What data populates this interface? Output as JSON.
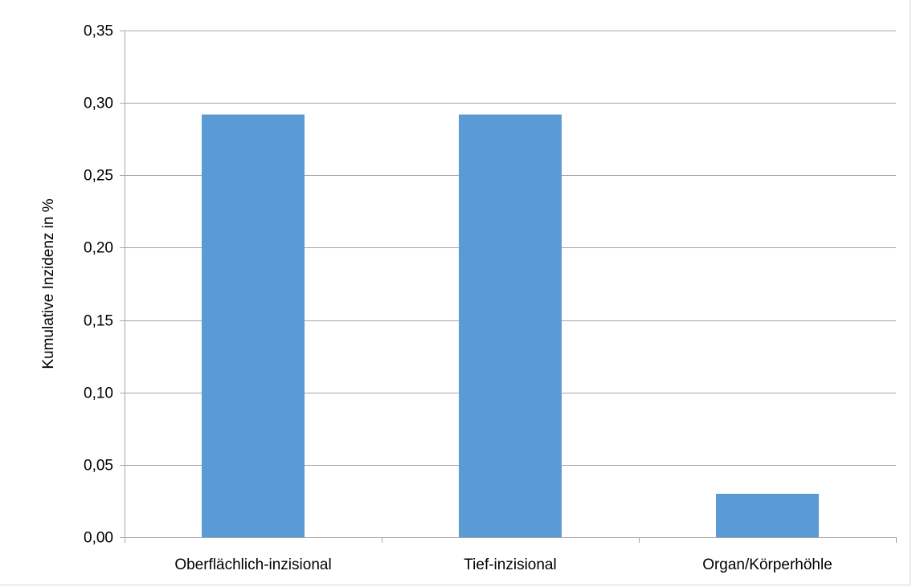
{
  "chart_data": {
    "type": "bar",
    "title": "",
    "xlabel": "",
    "ylabel": "Kumulative Inzidenz in %",
    "categories": [
      "Oberflächlich-inzisional",
      "Tief-inzisional",
      "Organ/Körperhöhle"
    ],
    "values": [
      0.292,
      0.292,
      0.03
    ],
    "ylim": [
      0,
      0.35
    ],
    "y_ticks": [
      0.0,
      0.05,
      0.1,
      0.15,
      0.2,
      0.25,
      0.3,
      0.35
    ],
    "y_tick_labels": [
      "0,00",
      "0,05",
      "0,10",
      "0,15",
      "0,20",
      "0,25",
      "0,30",
      "0,35"
    ],
    "grid": true,
    "legend": "none",
    "colors": {
      "bar": "#5b9bd5",
      "grid": "#a6a6a6",
      "axis": "#a6a6a6",
      "text": "#000000"
    }
  }
}
